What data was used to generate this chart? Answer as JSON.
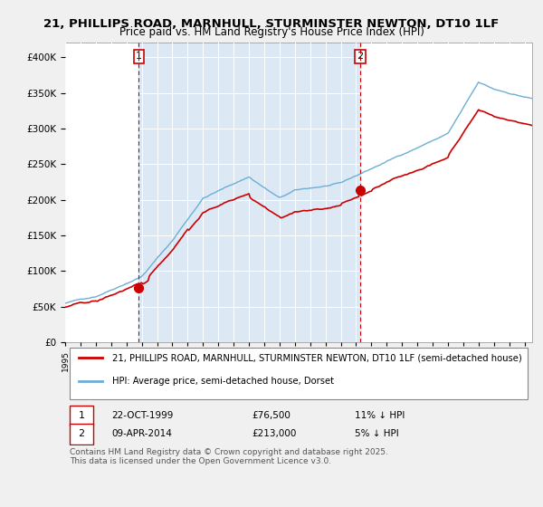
{
  "title": "21, PHILLIPS ROAD, MARNHULL, STURMINSTER NEWTON, DT10 1LF",
  "subtitle": "Price paid vs. HM Land Registry's House Price Index (HPI)",
  "legend_line1": "21, PHILLIPS ROAD, MARNHULL, STURMINSTER NEWTON, DT10 1LF (semi-detached house)",
  "legend_line2": "HPI: Average price, semi-detached house, Dorset",
  "sale1_date": "22-OCT-1999",
  "sale1_price": 76500,
  "sale1_label": "1",
  "sale1_year": 1999.81,
  "sale2_date": "09-APR-2014",
  "sale2_price": 213000,
  "sale2_label": "2",
  "sale2_year": 2014.27,
  "annotation1": "1    22-OCT-1999          £76,500          11% ↓ HPI",
  "annotation2": "2    09-APR-2014          £213,000          5% ↓ HPI",
  "footer": "Contains HM Land Registry data © Crown copyright and database right 2025.\nThis data is licensed under the Open Government Licence v3.0.",
  "ylim_max": 420000,
  "hpi_color": "#6baed6",
  "price_color": "#cc0000",
  "bg_color": "#dce9f5",
  "grid_color": "#ffffff",
  "sale_marker_color": "#cc0000",
  "dashed_line_color": "#cc0000",
  "box_color": "#cc0000"
}
